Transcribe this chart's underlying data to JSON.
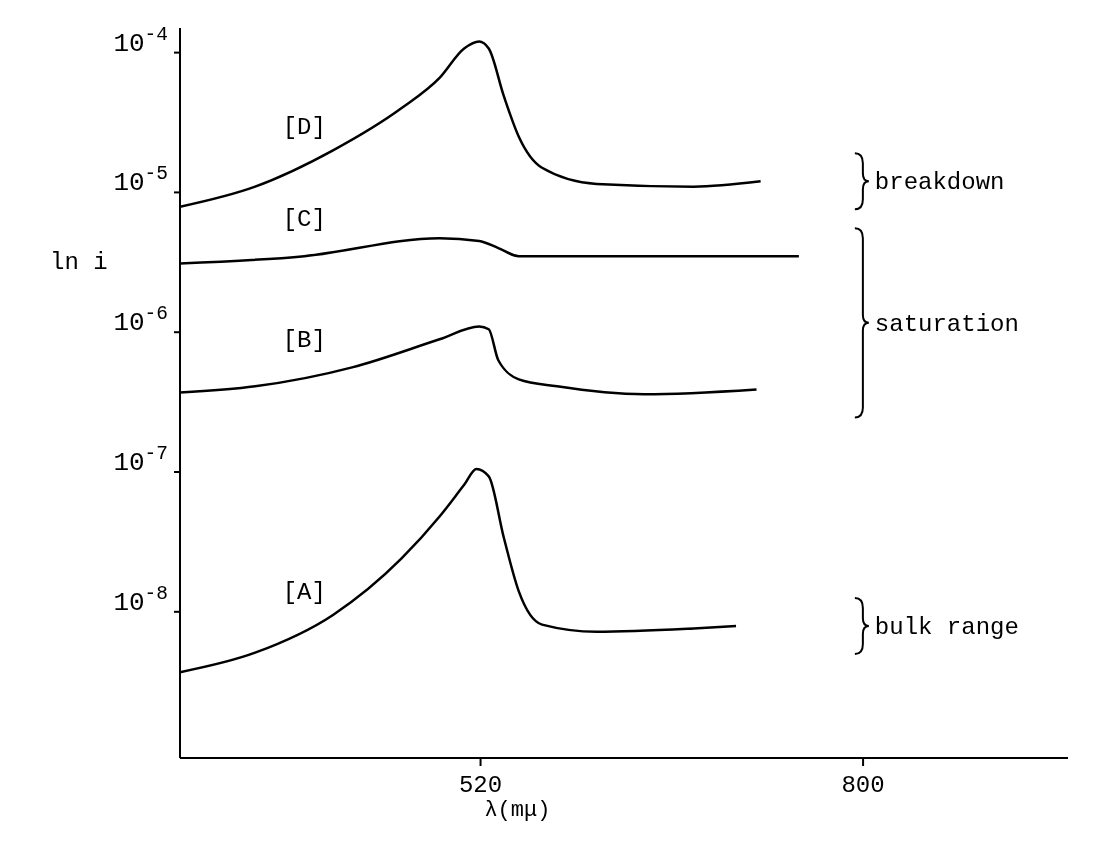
{
  "chart_data": {
    "type": "line",
    "xlabel": "λ(mμ)",
    "ylabel": "ln i",
    "log": "y",
    "grid": false,
    "marker": "none",
    "line_style": "solid",
    "xlim": [
      300,
      950
    ],
    "xticks": [
      520,
      800
    ],
    "ylim": [
      9e-10,
      0.00015
    ],
    "yticks": [
      {
        "value": 0.0001,
        "label": "10$^{-4}$"
      },
      {
        "value": 1e-05,
        "label": "10$^{-5}$"
      },
      {
        "value": 1e-06,
        "label": "10$^{-6}$"
      },
      {
        "value": 1e-07,
        "label": "10$^{-7}$"
      },
      {
        "value": 1e-08,
        "label": "10$^{-8}$"
      }
    ],
    "series": [
      {
        "name": "[D]",
        "color": "#000000",
        "x": [
          300,
          355,
          412,
          462,
          490,
          508,
          519,
          526,
          537,
          548,
          565,
          605,
          676,
          725
        ],
        "values": [
          7.9e-06,
          1.1e-05,
          2e-05,
          4e-05,
          6.6e-05,
          0.000107,
          0.00012,
          0.000107,
          4.9e-05,
          2.5e-05,
          1.5e-05,
          1.15e-05,
          1.1e-05,
          1.2e-05
        ]
      },
      {
        "name": "[C]",
        "color": "#000000",
        "x": [
          300,
          391,
          490,
          519,
          533,
          548,
          562,
          600,
          753
        ],
        "values": [
          3.1e-06,
          3.5e-06,
          4.7e-06,
          4.5e-06,
          4e-06,
          3.5e-06,
          3.5e-06,
          3.5e-06,
          3.5e-06
        ]
      },
      {
        "name": "[B]",
        "color": "#000000",
        "x": [
          300,
          355,
          426,
          490,
          519,
          526,
          533,
          548,
          576,
          640,
          722
        ],
        "values": [
          3.7e-07,
          4.1e-07,
          5.6e-07,
          8.9e-07,
          1.1e-06,
          1.05e-06,
          6.3e-07,
          4.6e-07,
          4.1e-07,
          3.6e-07,
          3.9e-07
        ]
      },
      {
        "name": "[A]",
        "color": "#000000",
        "x": [
          300,
          355,
          412,
          462,
          490,
          508,
          517,
          526,
          537,
          548,
          565,
          605,
          676,
          707
        ],
        "values": [
          3.7e-09,
          5.1e-09,
          9.5e-09,
          2.4e-08,
          4.8e-08,
          8.1e-08,
          1.05e-07,
          9.3e-08,
          3.4e-08,
          1.4e-08,
          8.1e-09,
          7.2e-09,
          7.6e-09,
          7.9e-09
        ]
      }
    ],
    "annotations": [
      "breakdown",
      "saturation",
      "bulk range"
    ]
  }
}
